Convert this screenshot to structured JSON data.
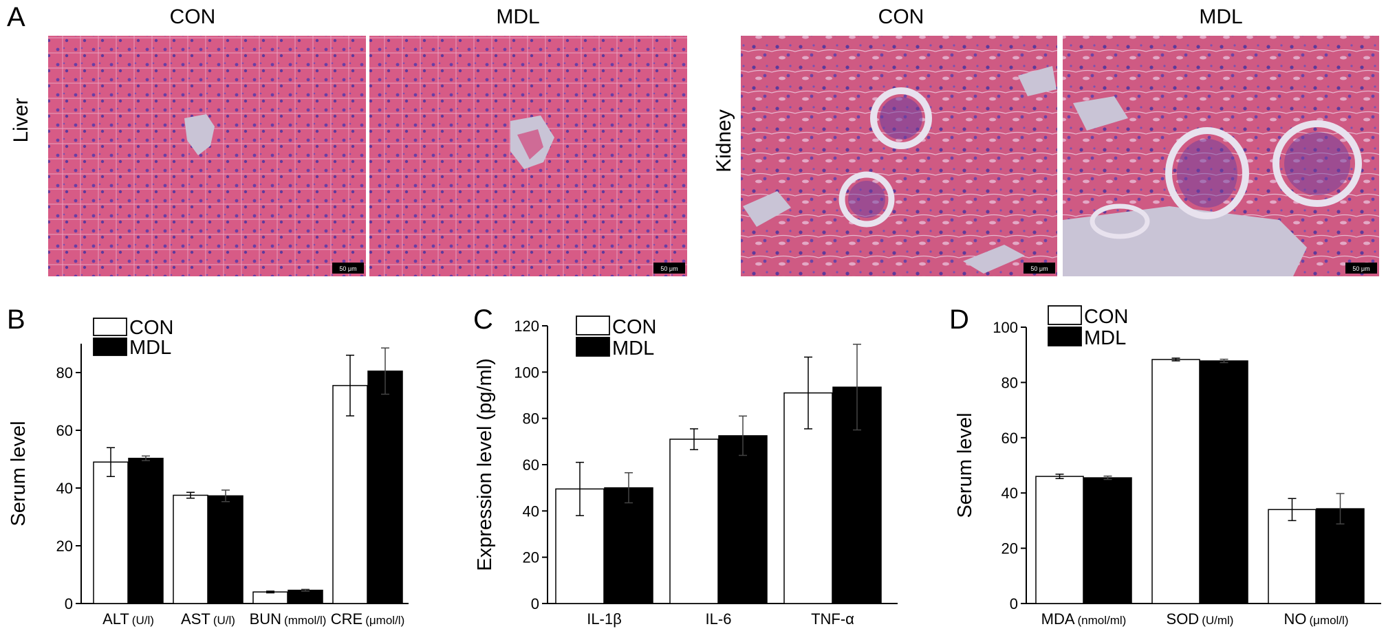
{
  "figure": {
    "panel_a": {
      "letter": "A",
      "groups": [
        {
          "row_label": "Liver",
          "columns": [
            "CON",
            "MDL"
          ],
          "scale_bar": "50 μm"
        },
        {
          "row_label": "Kidney",
          "columns": [
            "CON",
            "MDL"
          ],
          "scale_bar": "50 μm"
        }
      ]
    },
    "colors": {
      "con_fill": "#ffffff",
      "mdl_fill": "#000000",
      "tissue_pink": "#d9577f",
      "nuclei_purple": "#6a3fa5",
      "lumen": "#c9c4d6"
    }
  },
  "chart_data": [
    {
      "letter": "B",
      "type": "bar",
      "ylabel": "Serum  level",
      "categories": [
        {
          "name": "ALT",
          "unit": "(U/l)"
        },
        {
          "name": "AST",
          "unit": "(U/l)"
        },
        {
          "name": "BUN",
          "unit": "(mmol/l)"
        },
        {
          "name": "CRE",
          "unit": "(μmol/l)"
        }
      ],
      "ylim": [
        0,
        90
      ],
      "yticks": [
        0,
        20,
        40,
        60,
        80
      ],
      "legend": "top-left",
      "series": [
        {
          "name": "CON",
          "values": [
            49,
            37.5,
            4,
            75.5
          ],
          "errors": [
            5,
            1,
            0.3,
            10.5
          ]
        },
        {
          "name": "MDL",
          "values": [
            50.3,
            37.3,
            4.6,
            80.5
          ],
          "errors": [
            0.8,
            2,
            0.3,
            8
          ]
        }
      ]
    },
    {
      "letter": "C",
      "type": "bar",
      "ylabel": "Expression level (pg/ml)",
      "categories": [
        {
          "name": "IL-1β",
          "unit": ""
        },
        {
          "name": "IL-6",
          "unit": ""
        },
        {
          "name": "TNF-α",
          "unit": ""
        }
      ],
      "ylim": [
        0,
        120
      ],
      "yticks": [
        0,
        20,
        40,
        60,
        80,
        100,
        120
      ],
      "legend": "top-left",
      "series": [
        {
          "name": "CON",
          "values": [
            49.5,
            71,
            91
          ],
          "errors": [
            11.5,
            4.5,
            15.5
          ]
        },
        {
          "name": "MDL",
          "values": [
            50,
            72.5,
            93.5
          ],
          "errors": [
            6.5,
            8.5,
            18.5
          ]
        }
      ]
    },
    {
      "letter": "D",
      "type": "bar",
      "ylabel": "Serum level",
      "categories": [
        {
          "name": "MDA",
          "unit": "(nmol/ml)"
        },
        {
          "name": "SOD",
          "unit": "(U/ml)"
        },
        {
          "name": "NO",
          "unit": "(μmol/l)"
        }
      ],
      "ylim": [
        0,
        100
      ],
      "yticks": [
        0,
        20,
        40,
        60,
        80,
        100
      ],
      "legend": "top-left",
      "series": [
        {
          "name": "CON",
          "values": [
            46,
            88.3,
            34
          ],
          "errors": [
            0.8,
            0.5,
            4
          ]
        },
        {
          "name": "MDL",
          "values": [
            45.5,
            87.8,
            34.3
          ],
          "errors": [
            0.6,
            0.6,
            5.5
          ]
        }
      ]
    }
  ]
}
